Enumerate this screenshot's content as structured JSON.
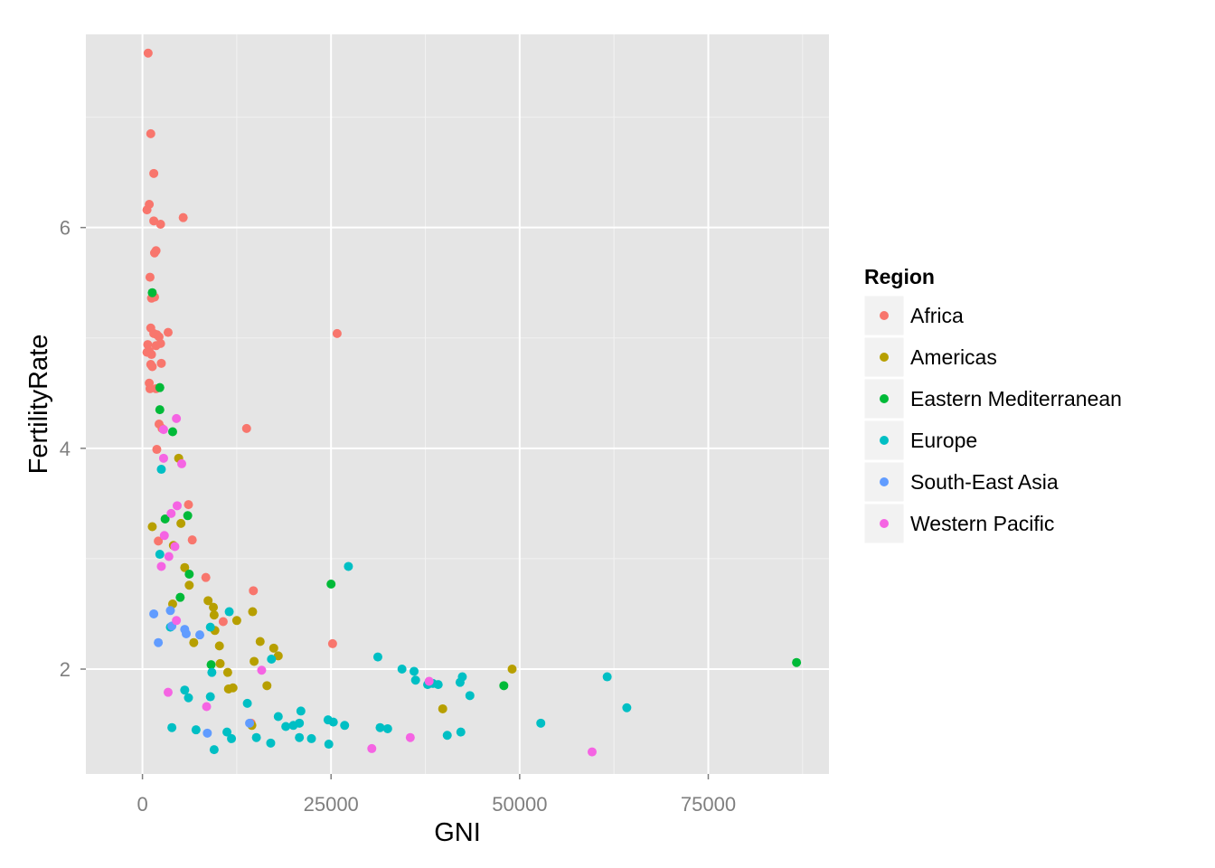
{
  "chart_data": {
    "type": "scatter",
    "title": "",
    "xlabel": "GNI",
    "ylabel": "FertilityRate",
    "xlim": [
      -7500,
      91000
    ],
    "ylim": [
      1.05,
      7.75
    ],
    "xticks": [
      0,
      25000,
      50000,
      75000
    ],
    "xtick_labels": [
      "0",
      "25000",
      "50000",
      "75000"
    ],
    "yticks": [
      2,
      4,
      6
    ],
    "ytick_labels": [
      "2",
      "4",
      "6"
    ],
    "grid": true,
    "background": "#e5e5e5",
    "legend": {
      "title": "Region",
      "position": "right"
    },
    "series": [
      {
        "name": "Africa",
        "color": "#f8766d",
        "points": [
          [
            750,
            7.58
          ],
          [
            1100,
            6.85
          ],
          [
            1500,
            6.49
          ],
          [
            900,
            6.21
          ],
          [
            600,
            6.16
          ],
          [
            1500,
            6.06
          ],
          [
            2400,
            6.03
          ],
          [
            5400,
            6.09
          ],
          [
            1600,
            5.77
          ],
          [
            1800,
            5.79
          ],
          [
            1000,
            5.55
          ],
          [
            1200,
            5.36
          ],
          [
            1600,
            5.37
          ],
          [
            1100,
            5.09
          ],
          [
            1500,
            5.04
          ],
          [
            1900,
            5.03
          ],
          [
            2200,
            5.01
          ],
          [
            3400,
            5.05
          ],
          [
            700,
            4.94
          ],
          [
            900,
            4.88
          ],
          [
            1200,
            4.85
          ],
          [
            600,
            4.87
          ],
          [
            1800,
            4.93
          ],
          [
            2400,
            4.95
          ],
          [
            1100,
            4.76
          ],
          [
            1300,
            4.74
          ],
          [
            2500,
            4.77
          ],
          [
            900,
            4.59
          ],
          [
            1000,
            4.54
          ],
          [
            1800,
            4.54
          ],
          [
            2200,
            4.22
          ],
          [
            2600,
            4.18
          ],
          [
            1900,
            3.99
          ],
          [
            6100,
            3.49
          ],
          [
            6600,
            3.17
          ],
          [
            2100,
            3.16
          ],
          [
            8400,
            2.83
          ],
          [
            14700,
            2.71
          ],
          [
            10700,
            2.43
          ],
          [
            14400,
            1.51
          ],
          [
            13800,
            4.18
          ],
          [
            25800,
            5.04
          ],
          [
            25200,
            2.23
          ]
        ]
      },
      {
        "name": "Americas",
        "color": "#b79f00",
        "points": [
          [
            4800,
            3.91
          ],
          [
            1300,
            3.29
          ],
          [
            5100,
            3.32
          ],
          [
            4100,
            3.12
          ],
          [
            5600,
            2.92
          ],
          [
            6200,
            2.76
          ],
          [
            4000,
            2.59
          ],
          [
            8700,
            2.62
          ],
          [
            9400,
            2.56
          ],
          [
            9500,
            2.49
          ],
          [
            14600,
            2.52
          ],
          [
            12500,
            2.44
          ],
          [
            9600,
            2.35
          ],
          [
            15600,
            2.25
          ],
          [
            6800,
            2.24
          ],
          [
            10200,
            2.21
          ],
          [
            17400,
            2.19
          ],
          [
            18000,
            2.12
          ],
          [
            14800,
            2.07
          ],
          [
            10300,
            2.05
          ],
          [
            11300,
            1.97
          ],
          [
            16500,
            1.85
          ],
          [
            11400,
            1.82
          ],
          [
            12000,
            1.83
          ],
          [
            49000,
            2.0
          ],
          [
            39800,
            1.64
          ],
          [
            14500,
            1.49
          ]
        ]
      },
      {
        "name": "Eastern Mediterranean",
        "color": "#00ba38",
        "points": [
          [
            1300,
            5.41
          ],
          [
            2300,
            4.55
          ],
          [
            2300,
            4.35
          ],
          [
            4000,
            4.15
          ],
          [
            3000,
            3.36
          ],
          [
            6000,
            3.39
          ],
          [
            6200,
            2.86
          ],
          [
            5000,
            2.65
          ],
          [
            9100,
            2.04
          ],
          [
            25000,
            2.77
          ],
          [
            47900,
            1.85
          ],
          [
            86700,
            2.06
          ]
        ]
      },
      {
        "name": "Europe",
        "color": "#00bfc4",
        "points": [
          [
            2500,
            3.81
          ],
          [
            2300,
            3.04
          ],
          [
            3700,
            2.38
          ],
          [
            9000,
            2.38
          ],
          [
            11500,
            2.52
          ],
          [
            17100,
            2.09
          ],
          [
            9200,
            1.97
          ],
          [
            5600,
            1.81
          ],
          [
            6100,
            1.74
          ],
          [
            9000,
            1.75
          ],
          [
            13900,
            1.69
          ],
          [
            3900,
            1.47
          ],
          [
            7100,
            1.45
          ],
          [
            11200,
            1.43
          ],
          [
            11800,
            1.37
          ],
          [
            15100,
            1.38
          ],
          [
            9500,
            1.27
          ],
          [
            18000,
            1.57
          ],
          [
            19000,
            1.48
          ],
          [
            20000,
            1.49
          ],
          [
            20800,
            1.51
          ],
          [
            21000,
            1.62
          ],
          [
            20800,
            1.38
          ],
          [
            22400,
            1.37
          ],
          [
            24600,
            1.54
          ],
          [
            25300,
            1.52
          ],
          [
            26800,
            1.49
          ],
          [
            24700,
            1.32
          ],
          [
            27300,
            2.93
          ],
          [
            31200,
            2.11
          ],
          [
            31500,
            1.47
          ],
          [
            32500,
            1.46
          ],
          [
            34400,
            2.0
          ],
          [
            36000,
            1.98
          ],
          [
            36200,
            1.9
          ],
          [
            37800,
            1.86
          ],
          [
            38500,
            1.87
          ],
          [
            39200,
            1.86
          ],
          [
            40400,
            1.4
          ],
          [
            42100,
            1.88
          ],
          [
            42400,
            1.93
          ],
          [
            43400,
            1.76
          ],
          [
            42200,
            1.43
          ],
          [
            52800,
            1.51
          ],
          [
            61600,
            1.93
          ],
          [
            64200,
            1.65
          ],
          [
            17000,
            1.33
          ]
        ]
      },
      {
        "name": "South-East Asia",
        "color": "#619cff",
        "points": [
          [
            1500,
            2.5
          ],
          [
            2100,
            2.24
          ],
          [
            3700,
            2.53
          ],
          [
            3900,
            2.39
          ],
          [
            5600,
            2.36
          ],
          [
            5800,
            2.32
          ],
          [
            7600,
            2.31
          ],
          [
            8600,
            1.42
          ],
          [
            14200,
            1.51
          ]
        ]
      },
      {
        "name": "Western Pacific",
        "color": "#f564e3",
        "points": [
          [
            4500,
            4.27
          ],
          [
            2800,
            4.17
          ],
          [
            5200,
            3.86
          ],
          [
            2800,
            3.91
          ],
          [
            4600,
            3.48
          ],
          [
            3800,
            3.41
          ],
          [
            2900,
            3.21
          ],
          [
            4300,
            3.11
          ],
          [
            3500,
            3.02
          ],
          [
            2500,
            2.93
          ],
          [
            4500,
            2.44
          ],
          [
            3400,
            1.79
          ],
          [
            15800,
            1.99
          ],
          [
            8500,
            1.66
          ],
          [
            30400,
            1.28
          ],
          [
            35500,
            1.38
          ],
          [
            38000,
            1.89
          ],
          [
            59600,
            1.25
          ]
        ]
      }
    ]
  }
}
